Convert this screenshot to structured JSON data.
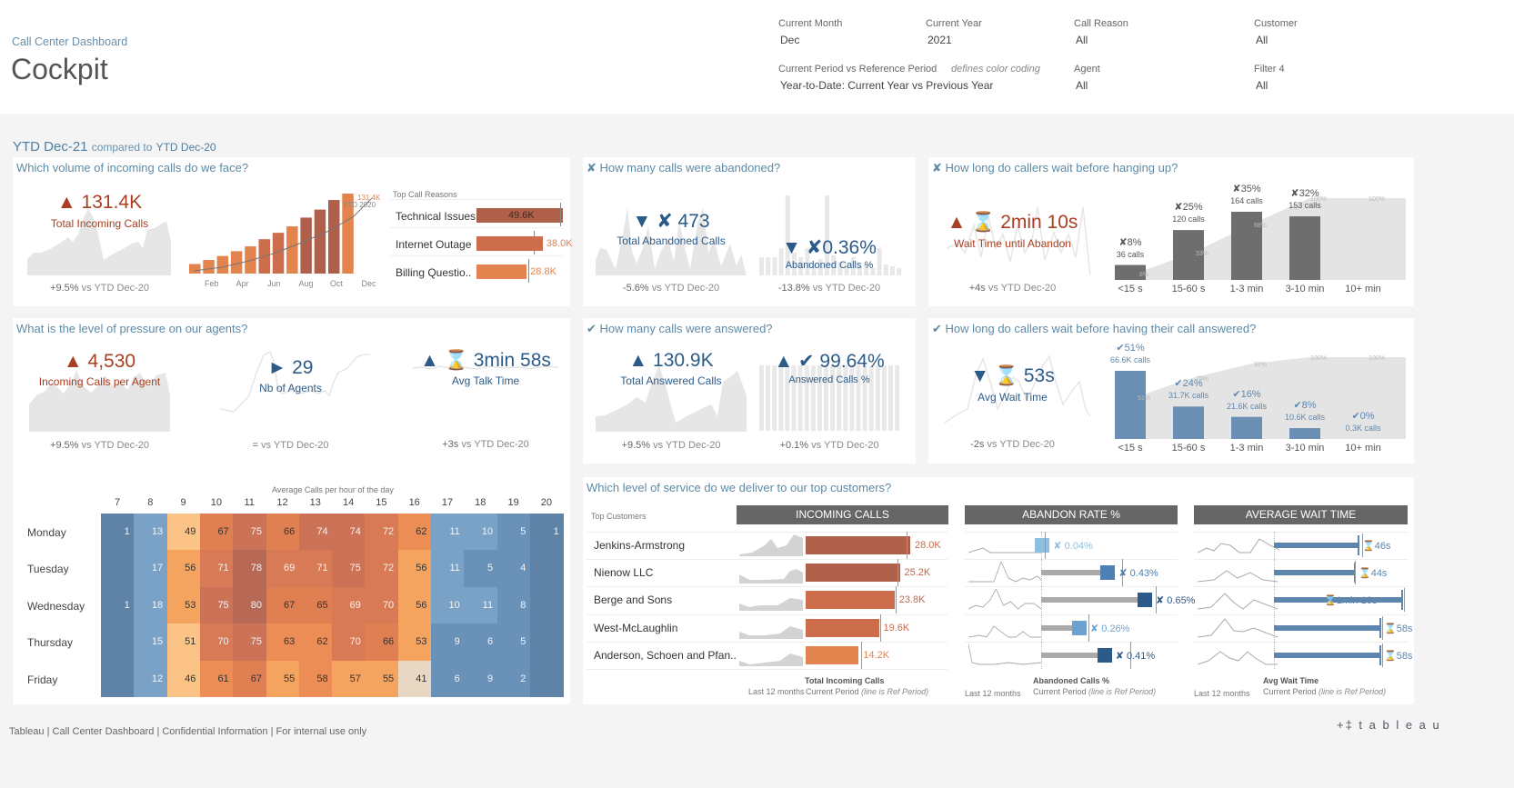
{
  "header": {
    "subtitle": "Call Center Dashboard",
    "title": "Cockpit",
    "filters": [
      {
        "label": "Current Month",
        "value": "Dec"
      },
      {
        "label": "Current Year",
        "value": "2021"
      },
      {
        "label": "Call Reason",
        "value": "All"
      },
      {
        "label": "Customer",
        "value": "All"
      },
      {
        "label": "Current Period vs Reference Period",
        "note": "defines color coding",
        "value": "Year-to-Date: Current Year vs Previous Year"
      },
      {
        "label": "Agent",
        "value": "All"
      },
      {
        "label": "Filter 4",
        "value": "All"
      }
    ]
  },
  "period": {
    "current": "YTD Dec-21",
    "compared_text": "compared to",
    "reference": "YTD Dec-20"
  },
  "volume": {
    "title": "Which volume of incoming calls do we face?",
    "kpi_value": "▲ 131.4K",
    "kpi_label": "Total Incoming Calls",
    "change": "+9.5%",
    "vs": "vs YTD Dec-20",
    "month_labels": [
      "Feb",
      "Apr",
      "Jun",
      "Aug",
      "Oct",
      "Dec"
    ],
    "end_value_label": "131.4K",
    "ref_label": "YTD 2020",
    "top_reasons_title": "Top Call Reasons",
    "reasons": [
      {
        "name": "Technical Issues",
        "value": "49.6K",
        "num": 49.6,
        "ref": 48.0,
        "color": "#b0604a"
      },
      {
        "name": "Internet Outage",
        "value": "38.0K",
        "num": 38.0,
        "ref": 33.0,
        "color": "#cc6e4b"
      },
      {
        "name": "Billing Questio..",
        "value": "28.8K",
        "num": 28.8,
        "ref": 29.5,
        "color": "#e3834d"
      }
    ]
  },
  "abandoned": {
    "title": "✘ How many calls were abandoned?",
    "kpi1_value": "▼ ✘ 473",
    "kpi1_label": "Total Abandoned Calls",
    "kpi1_change": "-5.6%",
    "kpi2_value": "▼ ✘0.36%",
    "kpi2_label": "Abandoned Calls %",
    "kpi2_change": "-13.8%",
    "vs": "vs YTD Dec-20"
  },
  "wait_abandon": {
    "title": "✘ How long do callers wait before hanging up?",
    "kpi_value": "▲ ⌛ 2min 10s",
    "kpi_label": "Wait Time until Abandon",
    "change": "+4s",
    "vs": "vs YTD Dec-20",
    "categories": [
      "<15 s",
      "15-60 s",
      "1-3 min",
      "3-10 min",
      "10+ min"
    ],
    "pct_labels": [
      "✘8%",
      "✘25%",
      "✘35%",
      "✘32%",
      ""
    ],
    "calls_labels": [
      "36 calls",
      "120 calls",
      "164 calls",
      "153 calls",
      ""
    ],
    "calls": [
      36,
      120,
      164,
      153,
      0
    ],
    "cumulative_labels": [
      "8%",
      "33%",
      "68%",
      "100%",
      "100%"
    ]
  },
  "pressure": {
    "title": "What is the level of pressure on our agents?",
    "kpi1_value": "▲ 4,530",
    "kpi1_label": "Incoming Calls per Agent",
    "kpi1_change": "+9.5%",
    "kpi2_value": "► 29",
    "kpi2_label": "Nb of Agents",
    "kpi2_change": "=",
    "kpi3_value": "▲ ⌛ 3min 58s",
    "kpi3_label": "Avg Talk Time",
    "kpi3_change": "+3s",
    "vs": "vs YTD Dec-20"
  },
  "answered": {
    "title": "✔ How many calls were answered?",
    "kpi1_value": "▲ 130.9K",
    "kpi1_label": "Total Answered Calls",
    "kpi1_change": "+9.5%",
    "kpi2_value": "▲ ✔ 99.64%",
    "kpi2_label": "Answered Calls %",
    "kpi2_change": "+0.1%",
    "vs": "vs YTD Dec-20"
  },
  "wait_answer": {
    "title": "✔ How long do callers wait before having their call answered?",
    "kpi_value": "▼ ⌛ 53s",
    "kpi_label": "Avg Wait Time",
    "change": "-2s",
    "vs": "vs YTD Dec-20",
    "categories": [
      "<15 s",
      "15-60 s",
      "1-3 min",
      "3-10 min",
      "10+ min"
    ],
    "pct_labels": [
      "✔51%",
      "✔24%",
      "✔16%",
      "✔8%",
      "✔0%"
    ],
    "calls_labels": [
      "66.6K calls",
      "31.7K calls",
      "21.6K calls",
      "10.6K calls",
      "0.3K calls"
    ],
    "calls": [
      66.6,
      31.7,
      21.6,
      10.6,
      0.3
    ],
    "cumulative_labels": [
      "51%",
      "75%",
      "92%",
      "100%",
      "100%"
    ]
  },
  "heatmap": {
    "title": "Average Calls per hour of the day",
    "hours": [
      "7",
      "8",
      "9",
      "10",
      "11",
      "12",
      "13",
      "14",
      "15",
      "16",
      "17",
      "18",
      "19",
      "20"
    ],
    "days": [
      "Monday",
      "Tuesday",
      "Wednesday",
      "Thursday",
      "Friday"
    ],
    "values": [
      [
        1,
        13,
        49,
        67,
        75,
        66,
        74,
        74,
        72,
        62,
        11,
        10,
        5,
        1
      ],
      [
        null,
        17,
        56,
        71,
        78,
        69,
        71,
        75,
        72,
        56,
        11,
        5,
        4,
        null
      ],
      [
        1,
        18,
        53,
        75,
        80,
        67,
        65,
        69,
        70,
        56,
        10,
        11,
        8,
        null
      ],
      [
        null,
        15,
        51,
        70,
        75,
        63,
        62,
        70,
        66,
        53,
        9,
        6,
        5,
        null
      ],
      [
        null,
        12,
        46,
        61,
        67,
        55,
        58,
        57,
        55,
        41,
        6,
        9,
        2,
        null
      ]
    ]
  },
  "customers": {
    "title": "Which level of service do we deliver to our top customers?",
    "top_label": "Top Customers",
    "col_incoming": "INCOMING CALLS",
    "col_abandon": "ABANDON RATE %",
    "col_wait": "AVERAGE WAIT TIME",
    "rows": [
      {
        "name": "Jenkins-Armstrong",
        "incoming": "28.0K",
        "incoming_num": 28.0,
        "incoming_ref": 27.0,
        "inc_color": "#b0604a",
        "abandon": "✘ 0.04%",
        "abandon_num": 0.04,
        "abandon_ref": 0.02,
        "ab_color": "#8fc0df",
        "wait": "⌛46s",
        "wait_num": 46,
        "wait_ref": 47
      },
      {
        "name": "Nienow LLC",
        "incoming": "25.2K",
        "incoming_num": 25.2,
        "incoming_ref": 24.5,
        "inc_color": "#b0604a",
        "abandon": "✘ 0.43%",
        "abandon_num": 0.43,
        "abandon_ref": 0.48,
        "ab_color": "#4f80b3",
        "wait": "⌛44s",
        "wait_num": 44,
        "wait_ref": 43
      },
      {
        "name": "Berge and Sons",
        "incoming": "23.8K",
        "incoming_num": 23.8,
        "incoming_ref": 24.0,
        "inc_color": "#cc6e4b",
        "abandon": "✘ 0.65%",
        "abandon_num": 0.65,
        "abandon_ref": 0.68,
        "ab_color": "#2c5b8a",
        "wait": "⌛1min 10s",
        "wait_num": 70,
        "wait_ref": 70
      },
      {
        "name": "West-McLaughlin",
        "incoming": "19.6K",
        "incoming_num": 19.6,
        "incoming_ref": 20.0,
        "inc_color": "#cc6e4b",
        "abandon": "✘ 0.26%",
        "abandon_num": 0.26,
        "abandon_ref": 0.28,
        "ab_color": "#6da2cf",
        "wait": "⌛58s",
        "wait_num": 58,
        "wait_ref": 58
      },
      {
        "name": "Anderson, Schoen and Pfan..",
        "incoming": "14.2K",
        "incoming_num": 14.2,
        "incoming_ref": 14.8,
        "inc_color": "#e3834d",
        "abandon": "✘ 0.41%",
        "abandon_num": 0.41,
        "abandon_ref": 0.53,
        "ab_color": "#2c5b8a",
        "wait": "⌛58s",
        "wait_num": 58,
        "wait_ref": 58
      }
    ],
    "foot_incoming_title": "Total Incoming Calls",
    "foot_abandon_title": "Abandoned Calls %",
    "foot_wait_title": "Avg Wait Time",
    "foot_last12": "Last 12 months",
    "foot_current": "Current Period",
    "foot_line": "(line is Ref Period)"
  },
  "footer": {
    "text": "Tableau | Call Center Dashboard | Confidential Information | For internal use only",
    "logo": "+‡ t a b l e a u"
  }
}
